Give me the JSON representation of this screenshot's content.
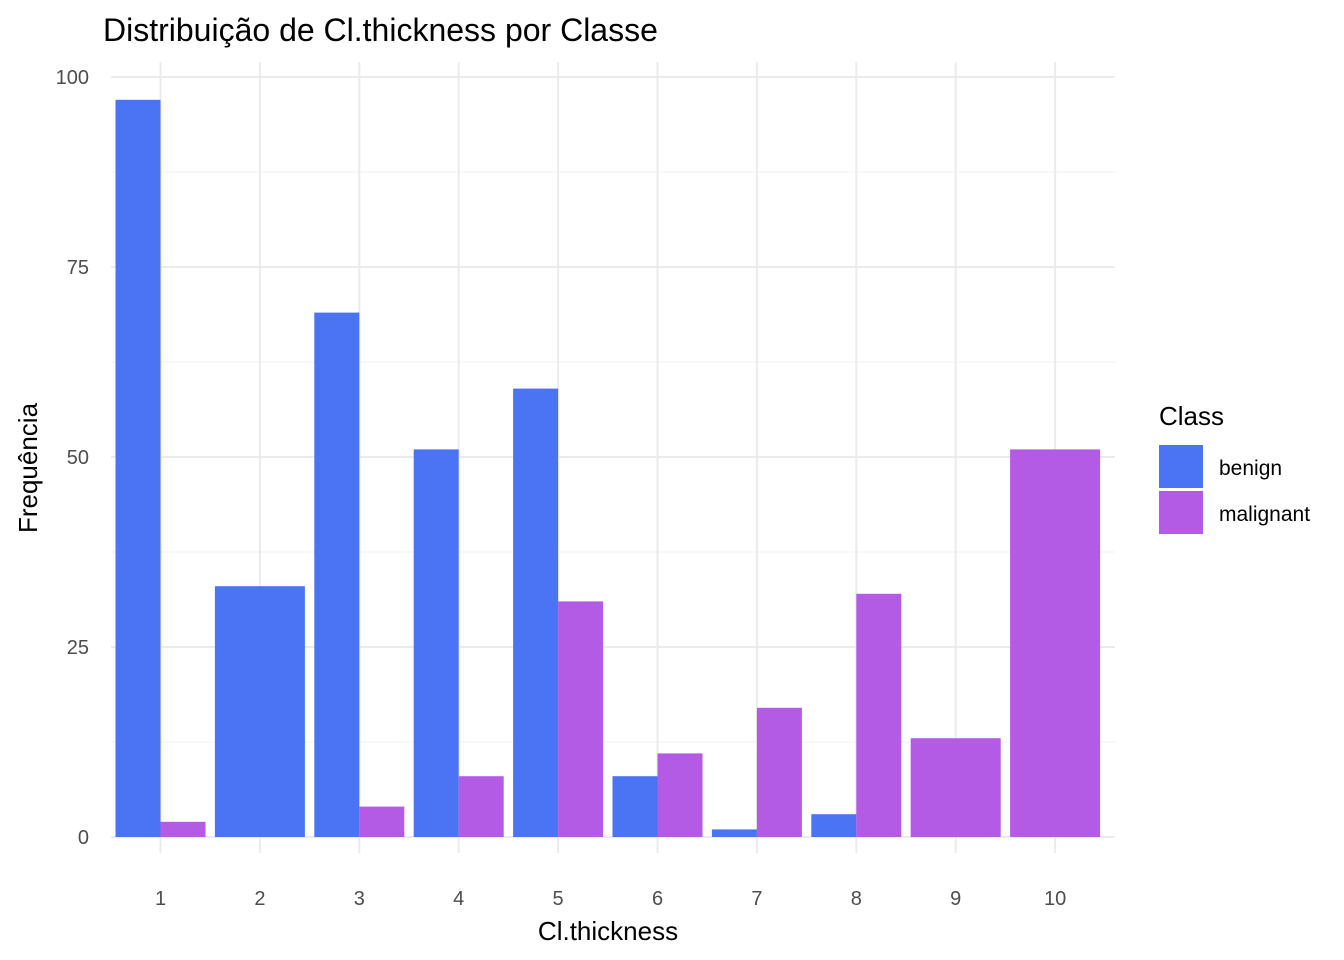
{
  "chart_data": {
    "type": "bar",
    "layout": "dodge",
    "title": "Distribuição de Cl.thickness por Classe",
    "xlabel": "Cl.thickness",
    "ylabel": "Frequência",
    "categories": [
      "1",
      "2",
      "3",
      "4",
      "5",
      "6",
      "7",
      "8",
      "9",
      "10"
    ],
    "y_ticks": [
      0,
      25,
      50,
      75,
      100
    ],
    "ylim": [
      0,
      100
    ],
    "grid": true,
    "legend": {
      "title": "Class",
      "placement": "right"
    },
    "series": [
      {
        "name": "benign",
        "color": "#4a74f3",
        "values": [
          97,
          33,
          69,
          51,
          59,
          8,
          1,
          3,
          0,
          0
        ]
      },
      {
        "name": "malignant",
        "color": "#b45be6",
        "values": [
          2,
          0,
          4,
          8,
          31,
          11,
          17,
          32,
          13,
          51
        ]
      }
    ]
  }
}
